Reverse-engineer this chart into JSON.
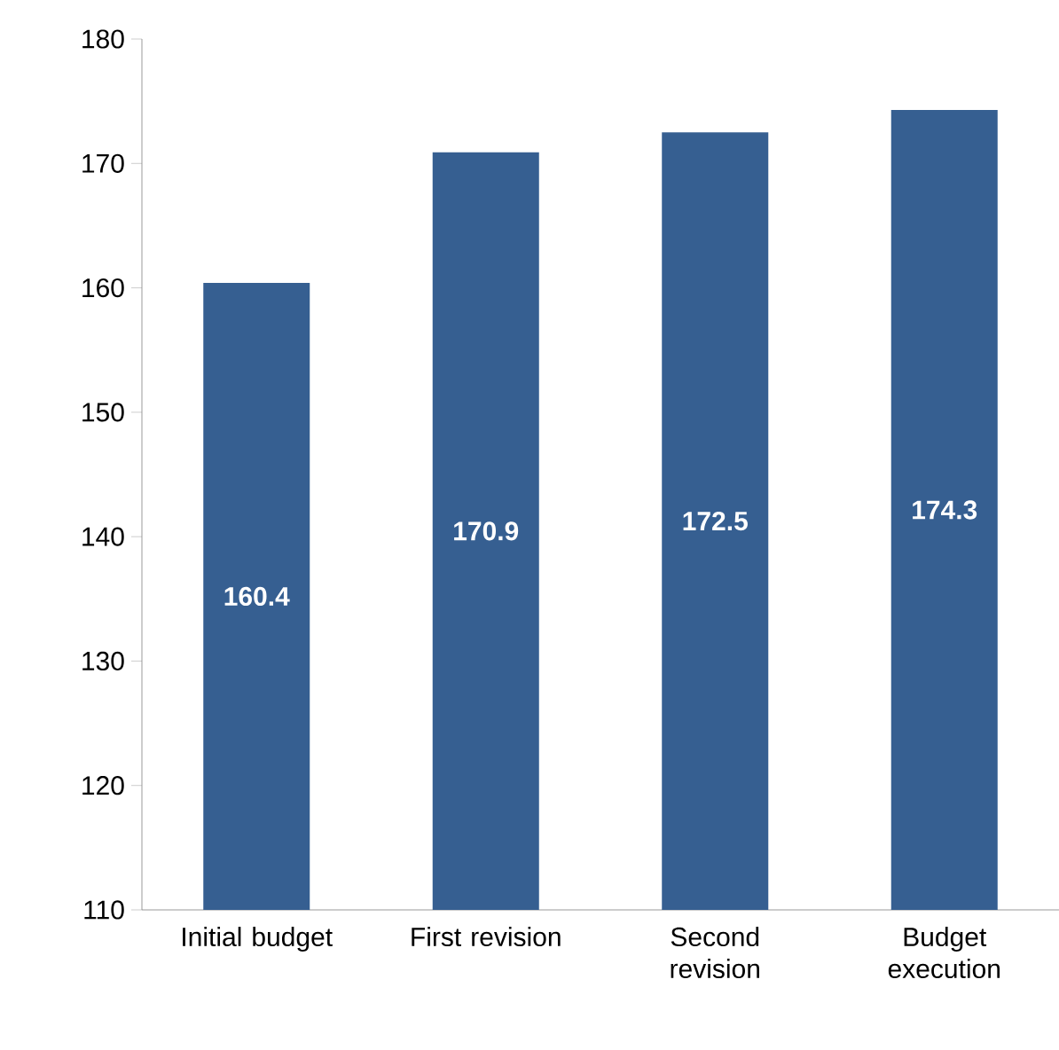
{
  "chart_data": {
    "type": "bar",
    "categories": [
      "Initial budget",
      "First revision",
      "Second revision",
      "Budget execution"
    ],
    "values": [
      160.4,
      170.9,
      172.5,
      174.3
    ],
    "color": "#365f91",
    "ylim": [
      110,
      180
    ],
    "yticks": [
      110,
      120,
      130,
      140,
      150,
      160,
      170,
      180
    ],
    "data_labels": true,
    "grid": false
  }
}
